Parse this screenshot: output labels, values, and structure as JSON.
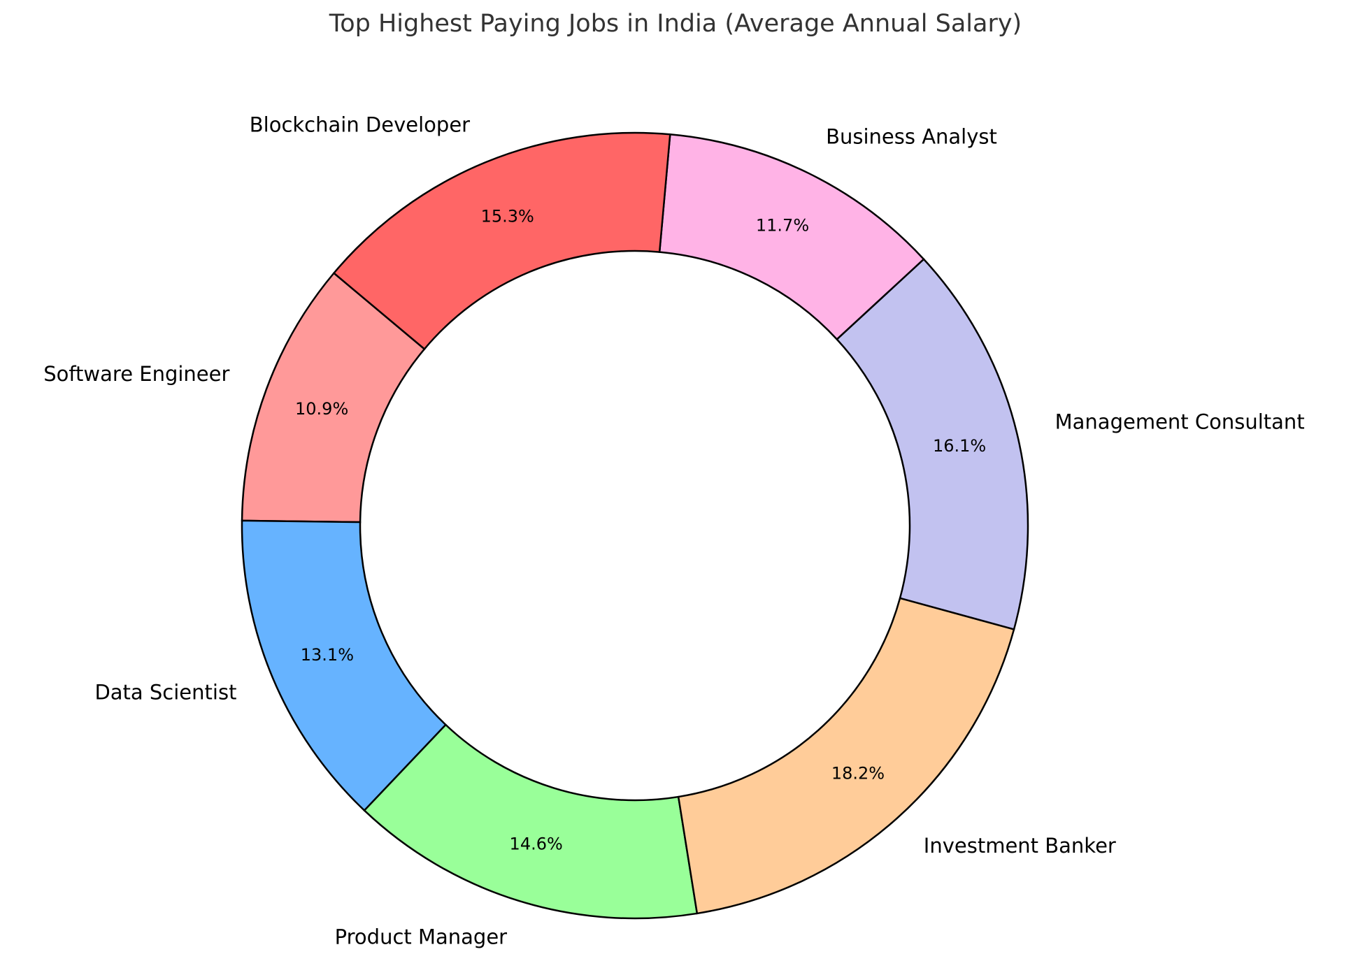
{
  "chart_data": {
    "type": "pie",
    "variant": "donut",
    "title": "Top Highest Paying Jobs in India (Average Annual Salary)",
    "start_angle_deg": 140,
    "direction": "counterclockwise",
    "legend": "none (labels placed outside slices)",
    "categories": [
      "Software Engineer",
      "Data Scientist",
      "Product Manager",
      "Investment Banker",
      "Management Consultant",
      "Business Analyst",
      "Blockchain Developer"
    ],
    "values": [
      10.9,
      13.1,
      14.6,
      18.2,
      16.1,
      11.7,
      15.3
    ],
    "value_labels": [
      "10.9%",
      "13.1%",
      "14.6%",
      "18.2%",
      "16.1%",
      "11.7%",
      "15.3%"
    ],
    "colors": [
      "#ff9999",
      "#66b3ff",
      "#99ff99",
      "#ffcc99",
      "#c2c2f0",
      "#ffb3e6",
      "#ff6666"
    ],
    "edge_color": "#000000"
  },
  "title": "Top Highest Paying Jobs in India (Average Annual Salary)"
}
